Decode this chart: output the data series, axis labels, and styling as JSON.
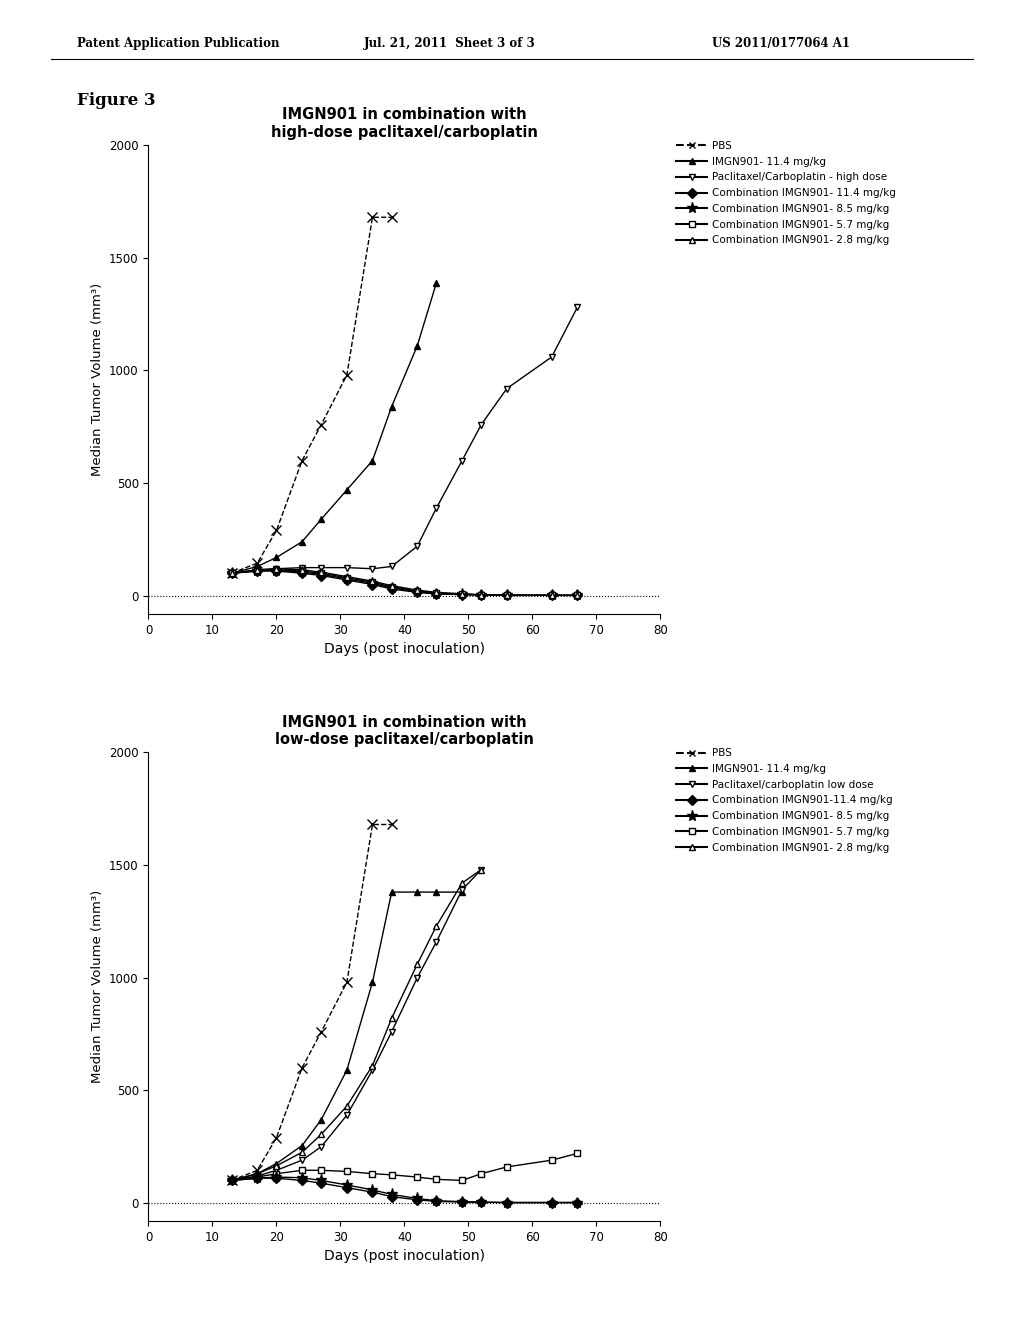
{
  "header_left": "Patent Application Publication",
  "header_center": "Jul. 21, 2011  Sheet 3 of 3",
  "header_right": "US 2011/0177064 A1",
  "figure_label": "Figure 3",
  "plot1": {
    "title": "IMGN901 in combination with\nhigh-dose paclitaxel/carboplatin",
    "xlabel": "Days (post inoculation)",
    "ylabel": "Median Tumor Volume (mm³)",
    "xlim": [
      0,
      80
    ],
    "ylim": [
      -80,
      2000
    ],
    "xticks": [
      0,
      10,
      20,
      30,
      40,
      50,
      60,
      70,
      80
    ],
    "yticks": [
      0,
      500,
      1000,
      1500,
      2000
    ],
    "series": [
      {
        "key": "PBS",
        "x": [
          13,
          17,
          20,
          24,
          27,
          31,
          35,
          38
        ],
        "y": [
          100,
          145,
          290,
          600,
          760,
          980,
          1680,
          1680
        ],
        "linestyle": "dashed",
        "marker": "x",
        "fillstyle": "none"
      },
      {
        "key": "IMGN901_11.4",
        "x": [
          13,
          17,
          20,
          24,
          27,
          31,
          35,
          38,
          42,
          45
        ],
        "y": [
          100,
          130,
          170,
          240,
          340,
          470,
          600,
          840,
          1110,
          1390
        ],
        "linestyle": "solid",
        "marker": "^",
        "fillstyle": "full"
      },
      {
        "key": "Paclitaxel_high",
        "x": [
          13,
          17,
          20,
          24,
          27,
          31,
          35,
          38,
          42,
          45,
          49,
          52,
          56,
          63,
          67
        ],
        "y": [
          100,
          115,
          120,
          125,
          125,
          125,
          120,
          130,
          220,
          390,
          600,
          760,
          920,
          1060,
          1280
        ],
        "linestyle": "solid",
        "marker": "v",
        "fillstyle": "none"
      },
      {
        "key": "Combo_11.4",
        "x": [
          13,
          17,
          20,
          24,
          27,
          31,
          35,
          38,
          42,
          45,
          49,
          52,
          56,
          63,
          67
        ],
        "y": [
          100,
          110,
          110,
          100,
          90,
          70,
          50,
          30,
          15,
          8,
          5,
          3,
          2,
          2,
          2
        ],
        "linestyle": "solid",
        "marker": "D",
        "fillstyle": "full"
      },
      {
        "key": "Combo_8.5",
        "x": [
          13,
          17,
          20,
          24,
          27,
          31,
          35,
          38,
          42,
          45,
          49,
          52,
          56,
          63,
          67
        ],
        "y": [
          100,
          110,
          112,
          105,
          95,
          75,
          55,
          35,
          18,
          10,
          6,
          4,
          2,
          2,
          2
        ],
        "linestyle": "solid",
        "marker": "*",
        "fillstyle": "full"
      },
      {
        "key": "Combo_5.7",
        "x": [
          13,
          17,
          20,
          24,
          27,
          31,
          35,
          38,
          42,
          45,
          49,
          52,
          56,
          63,
          67
        ],
        "y": [
          100,
          112,
          115,
          110,
          100,
          80,
          60,
          40,
          22,
          12,
          7,
          4,
          3,
          2,
          2
        ],
        "linestyle": "solid",
        "marker": "s",
        "fillstyle": "none"
      },
      {
        "key": "Combo_2.8",
        "x": [
          13,
          17,
          20,
          24,
          27,
          31,
          35,
          38,
          42,
          45,
          49,
          52,
          56,
          63,
          67
        ],
        "y": [
          100,
          115,
          120,
          115,
          105,
          85,
          65,
          45,
          25,
          15,
          9,
          5,
          3,
          2,
          2
        ],
        "linestyle": "solid",
        "marker": "^",
        "fillstyle": "none"
      }
    ],
    "legend": [
      {
        "label": "PBS",
        "linestyle": "dashed",
        "marker": "x",
        "filled": false
      },
      {
        "label": "IMGN901- 11.4 mg/kg",
        "linestyle": "solid",
        "marker": "^",
        "filled": true
      },
      {
        "label": "Paclitaxel/Carboplatin - high dose",
        "linestyle": "solid",
        "marker": "v",
        "filled": false
      },
      {
        "label": "Combination IMGN901- 11.4 mg/kg",
        "linestyle": "solid",
        "marker": "D",
        "filled": true
      },
      {
        "label": "Combination IMGN901- 8.5 mg/kg",
        "linestyle": "solid",
        "marker": "*",
        "filled": true
      },
      {
        "label": "Combination IMGN901- 5.7 mg/kg",
        "linestyle": "solid",
        "marker": "s",
        "filled": false
      },
      {
        "label": "Combination IMGN901- 2.8 mg/kg",
        "linestyle": "solid",
        "marker": "^",
        "filled": false
      }
    ]
  },
  "plot2": {
    "title": "IMGN901 in combination with\nlow-dose paclitaxel/carboplatin",
    "xlabel": "Days (post inoculation)",
    "ylabel": "Median Tumor Volume (mm³)",
    "xlim": [
      0,
      80
    ],
    "ylim": [
      -80,
      2000
    ],
    "xticks": [
      0,
      10,
      20,
      30,
      40,
      50,
      60,
      70,
      80
    ],
    "yticks": [
      0,
      500,
      1000,
      1500,
      2000
    ],
    "series": [
      {
        "key": "PBS",
        "x": [
          13,
          17,
          20,
          24,
          27,
          31,
          35,
          38
        ],
        "y": [
          100,
          145,
          290,
          600,
          760,
          980,
          1680,
          1680
        ],
        "linestyle": "dashed",
        "marker": "x",
        "fillstyle": "none"
      },
      {
        "key": "IMGN901_11.4",
        "x": [
          13,
          17,
          20,
          24,
          27,
          31,
          35,
          38,
          42,
          45,
          49
        ],
        "y": [
          100,
          130,
          175,
          255,
          370,
          590,
          980,
          1380,
          1380,
          1380,
          1380
        ],
        "linestyle": "solid",
        "marker": "^",
        "fillstyle": "full"
      },
      {
        "key": "Paclitaxel_low",
        "x": [
          13,
          17,
          20,
          24,
          27,
          31,
          35,
          38,
          42,
          45,
          49,
          52
        ],
        "y": [
          100,
          120,
          145,
          190,
          250,
          390,
          590,
          760,
          1000,
          1160,
          1390,
          1480
        ],
        "linestyle": "solid",
        "marker": "v",
        "fillstyle": "none"
      },
      {
        "key": "Combo_2.8",
        "x": [
          13,
          17,
          20,
          24,
          27,
          31,
          35,
          38,
          42,
          45,
          49,
          52
        ],
        "y": [
          100,
          130,
          165,
          225,
          305,
          430,
          610,
          820,
          1060,
          1230,
          1420,
          1480
        ],
        "linestyle": "solid",
        "marker": "^",
        "fillstyle": "none"
      },
      {
        "key": "Combo_5.7",
        "x": [
          13,
          17,
          20,
          24,
          27,
          31,
          35,
          38,
          42,
          45,
          49,
          52,
          56,
          63,
          67
        ],
        "y": [
          100,
          115,
          130,
          145,
          145,
          140,
          130,
          125,
          115,
          105,
          100,
          130,
          160,
          190,
          220
        ],
        "linestyle": "solid",
        "marker": "s",
        "fillstyle": "none"
      },
      {
        "key": "Combo_8.5",
        "x": [
          13,
          17,
          20,
          24,
          27,
          31,
          35,
          38,
          42,
          45,
          49,
          52,
          56,
          63,
          67
        ],
        "y": [
          100,
          110,
          115,
          112,
          100,
          80,
          58,
          38,
          20,
          10,
          6,
          4,
          2,
          2,
          2
        ],
        "linestyle": "solid",
        "marker": "*",
        "fillstyle": "full"
      },
      {
        "key": "Combo_11.4",
        "x": [
          13,
          17,
          20,
          24,
          27,
          31,
          35,
          38,
          42,
          45,
          49,
          52,
          56,
          63,
          67
        ],
        "y": [
          100,
          110,
          110,
          100,
          88,
          68,
          48,
          28,
          14,
          7,
          4,
          3,
          2,
          2,
          2
        ],
        "linestyle": "solid",
        "marker": "D",
        "fillstyle": "full"
      }
    ],
    "legend": [
      {
        "label": "PBS",
        "linestyle": "dashed",
        "marker": "x",
        "filled": false
      },
      {
        "label": "IMGN901- 11.4 mg/kg",
        "linestyle": "solid",
        "marker": "^",
        "filled": true
      },
      {
        "label": "Paclitaxel/carboplatin low dose",
        "linestyle": "solid",
        "marker": "v",
        "filled": false
      },
      {
        "label": "Combination IMGN901-11.4 mg/kg",
        "linestyle": "solid",
        "marker": "D",
        "filled": true
      },
      {
        "label": "Combination IMGN901- 8.5 mg/kg",
        "linestyle": "solid",
        "marker": "*",
        "filled": true
      },
      {
        "label": "Combination IMGN901- 5.7 mg/kg",
        "linestyle": "solid",
        "marker": "s",
        "filled": false
      },
      {
        "label": "Combination IMGN901- 2.8 mg/kg",
        "linestyle": "solid",
        "marker": "^",
        "filled": false
      }
    ]
  }
}
